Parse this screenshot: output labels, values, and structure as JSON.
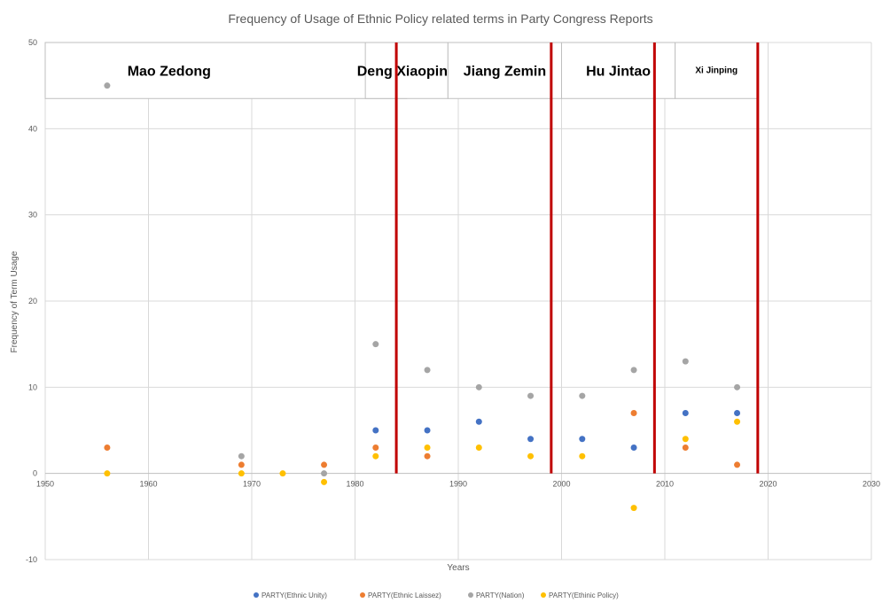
{
  "chart_data": {
    "type": "scatter",
    "title": "Frequency of Usage of Ethnic Policy related terms in Party Congress Reports",
    "xlabel": "Years",
    "ylabel": "Frequency of Term Usage",
    "xlim": [
      1950,
      2030
    ],
    "ylim": [
      -10,
      50
    ],
    "xticks": [
      1950,
      1960,
      1970,
      1980,
      1990,
      2000,
      2010,
      2020,
      2030
    ],
    "yticks": [
      -10,
      0,
      10,
      20,
      30,
      40,
      50
    ],
    "grid": "vertical and horizontal",
    "legend_position": "bottom",
    "series": [
      {
        "name": "PARTY(Ethnic Unity)",
        "color": "#4472c4",
        "points": [
          [
            1982,
            5
          ],
          [
            1987,
            5
          ],
          [
            1992,
            6
          ],
          [
            1997,
            4
          ],
          [
            2002,
            4
          ],
          [
            2007,
            3
          ],
          [
            2012,
            7
          ],
          [
            2017,
            7
          ]
        ]
      },
      {
        "name": "PARTY(Ethnic Laissez)",
        "color": "#ed7d31",
        "points": [
          [
            1956,
            3
          ],
          [
            1969,
            1
          ],
          [
            1977,
            1
          ],
          [
            1982,
            3
          ],
          [
            1987,
            2
          ],
          [
            2007,
            7
          ],
          [
            2012,
            3
          ],
          [
            2017,
            1
          ]
        ]
      },
      {
        "name": "PARTY(Nation)",
        "color": "#a5a5a5",
        "points": [
          [
            1956,
            45
          ],
          [
            1969,
            2
          ],
          [
            1977,
            0
          ],
          [
            1982,
            15
          ],
          [
            1987,
            12
          ],
          [
            1992,
            10
          ],
          [
            1997,
            9
          ],
          [
            2002,
            9
          ],
          [
            2007,
            12
          ],
          [
            2012,
            13
          ],
          [
            2017,
            10
          ]
        ]
      },
      {
        "name": "PARTY(Ethinic Policy)",
        "color": "#ffc000",
        "points": [
          [
            1956,
            0
          ],
          [
            1969,
            0
          ],
          [
            1973,
            0
          ],
          [
            1977,
            -1
          ],
          [
            1982,
            2
          ],
          [
            1987,
            3
          ],
          [
            1992,
            3
          ],
          [
            1997,
            2
          ],
          [
            2002,
            2
          ],
          [
            2007,
            -4
          ],
          [
            2012,
            4
          ],
          [
            2017,
            6
          ]
        ]
      }
    ],
    "leaders": [
      {
        "name": "Mao Zedong",
        "from": 1950,
        "to": 1985
      },
      {
        "name": "Deng Xiaoping",
        "from": 1981,
        "to": 1989
      },
      {
        "name": "Jiang Zemin",
        "from": 1989,
        "to": 2000
      },
      {
        "name": "Hu Jintao",
        "from": 2000,
        "to": 2011
      },
      {
        "name": "Xi Jinping",
        "from": 2011,
        "to": 2019
      }
    ],
    "dividers": [
      1984,
      1999,
      2009,
      2019
    ],
    "divider_color": "#c00000"
  }
}
